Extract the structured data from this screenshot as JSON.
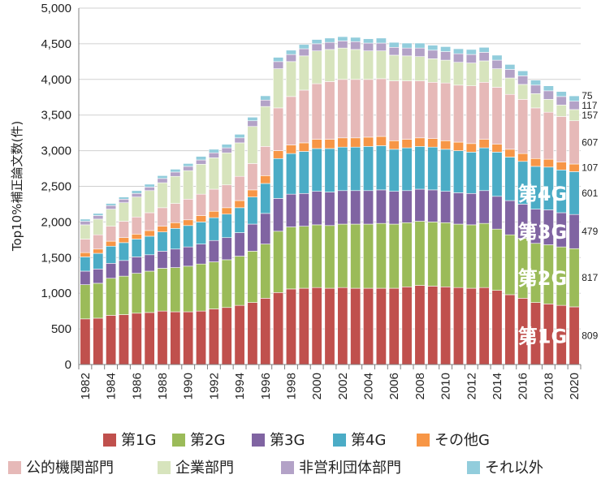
{
  "chart_data": {
    "type": "bar",
    "stacked": true,
    "ylabel": "Top10%補正論文数(件)",
    "ylim": [
      0,
      5000
    ],
    "yticks": [
      0,
      500,
      1000,
      1500,
      2000,
      2500,
      3000,
      3500,
      4000,
      4500,
      5000
    ],
    "ytick_labels": [
      "0",
      "500",
      "1,000",
      "1,500",
      "2,000",
      "2,500",
      "3,000",
      "3,500",
      "4,000",
      "4,500",
      "5,000"
    ],
    "grid": true,
    "legend_position": "bottom",
    "categories": [
      "1982",
      "1983",
      "1984",
      "1985",
      "1986",
      "1987",
      "1988",
      "1989",
      "1990",
      "1991",
      "1992",
      "1993",
      "1994",
      "1995",
      "1996",
      "1997",
      "1998",
      "1999",
      "2000",
      "2001",
      "2002",
      "2003",
      "2004",
      "2005",
      "2006",
      "2007",
      "2008",
      "2009",
      "2010",
      "2011",
      "2012",
      "2013",
      "2014",
      "2015",
      "2016",
      "2017",
      "2018",
      "2019",
      "2020"
    ],
    "x_tick_labels": [
      "1982",
      "",
      "1984",
      "",
      "1986",
      "",
      "1988",
      "",
      "1990",
      "",
      "1992",
      "",
      "1994",
      "",
      "1996",
      "",
      "1998",
      "",
      "2000",
      "",
      "2002",
      "",
      "2004",
      "",
      "2006",
      "",
      "2008",
      "",
      "2010",
      "",
      "2012",
      "",
      "2014",
      "",
      "2016",
      "",
      "2018",
      "",
      "2020"
    ],
    "series": [
      {
        "name": "第1G",
        "color": "#c0504d",
        "values": [
          640,
          650,
          690,
          700,
          720,
          730,
          750,
          740,
          740,
          750,
          780,
          800,
          830,
          870,
          930,
          1010,
          1060,
          1070,
          1080,
          1070,
          1080,
          1070,
          1070,
          1070,
          1070,
          1090,
          1110,
          1100,
          1090,
          1080,
          1070,
          1080,
          1040,
          980,
          930,
          870,
          850,
          830,
          809
        ]
      },
      {
        "name": "第2G",
        "color": "#9bbb59",
        "values": [
          480,
          490,
          520,
          540,
          560,
          580,
          600,
          620,
          640,
          660,
          660,
          670,
          690,
          720,
          760,
          860,
          870,
          870,
          880,
          880,
          890,
          900,
          900,
          910,
          900,
          900,
          900,
          900,
          900,
          890,
          890,
          900,
          860,
          840,
          840,
          830,
          830,
          820,
          817
        ]
      },
      {
        "name": "第3G",
        "color": "#8064a2",
        "values": [
          190,
          200,
          210,
          220,
          230,
          230,
          240,
          260,
          270,
          280,
          300,
          310,
          330,
          380,
          430,
          460,
          460,
          460,
          470,
          470,
          470,
          470,
          470,
          470,
          460,
          450,
          450,
          450,
          440,
          440,
          440,
          460,
          460,
          480,
          480,
          480,
          490,
          480,
          479
        ]
      },
      {
        "name": "第4G",
        "color": "#4bacc6",
        "values": [
          200,
          220,
          240,
          250,
          250,
          260,
          270,
          290,
          300,
          310,
          320,
          330,
          350,
          380,
          420,
          560,
          570,
          590,
          600,
          610,
          610,
          610,
          620,
          620,
          590,
          600,
          600,
          600,
          590,
          590,
          580,
          600,
          620,
          610,
          600,
          600,
          600,
          600,
          601
        ]
      },
      {
        "name": "その他G",
        "color": "#f79646",
        "values": [
          60,
          60,
          70,
          70,
          70,
          80,
          80,
          80,
          80,
          90,
          90,
          90,
          100,
          100,
          110,
          110,
          120,
          120,
          130,
          130,
          130,
          130,
          130,
          130,
          120,
          120,
          120,
          120,
          120,
          120,
          120,
          120,
          110,
          110,
          110,
          110,
          110,
          110,
          107
        ]
      },
      {
        "name": "公的機関部門",
        "color": "#e6b9b8",
        "values": [
          190,
          200,
          210,
          230,
          240,
          250,
          260,
          270,
          290,
          300,
          310,
          320,
          340,
          370,
          410,
          600,
          680,
          740,
          780,
          810,
          820,
          820,
          810,
          810,
          840,
          820,
          800,
          790,
          810,
          800,
          810,
          800,
          800,
          770,
          760,
          710,
          660,
          640,
          607
        ]
      },
      {
        "name": "企業部門",
        "color": "#d7e4bd",
        "values": [
          200,
          220,
          240,
          260,
          280,
          310,
          350,
          380,
          400,
          420,
          440,
          450,
          470,
          520,
          560,
          550,
          490,
          480,
          460,
          450,
          440,
          420,
          400,
          390,
          360,
          350,
          340,
          330,
          320,
          320,
          320,
          300,
          260,
          230,
          210,
          200,
          180,
          160,
          157
        ]
      },
      {
        "name": "非営利団体部門",
        "color": "#b3a2c7",
        "values": [
          50,
          50,
          50,
          50,
          50,
          50,
          60,
          60,
          60,
          60,
          70,
          70,
          70,
          80,
          90,
          100,
          100,
          100,
          100,
          100,
          100,
          110,
          110,
          110,
          110,
          110,
          120,
          120,
          120,
          120,
          120,
          120,
          120,
          120,
          120,
          120,
          120,
          120,
          117
        ]
      },
      {
        "name": "それ以外",
        "color": "#92cddc",
        "values": [
          30,
          30,
          30,
          30,
          40,
          40,
          40,
          40,
          40,
          50,
          50,
          50,
          50,
          50,
          60,
          60,
          60,
          60,
          60,
          60,
          60,
          60,
          60,
          70,
          70,
          70,
          70,
          70,
          70,
          70,
          70,
          70,
          70,
          70,
          70,
          70,
          70,
          70,
          75
        ]
      }
    ],
    "segment_labels": [
      "第1G",
      "第2G",
      "第3G",
      "第4G"
    ],
    "value_labels_2020": [
      "809",
      "817",
      "479",
      "601",
      "107",
      "607",
      "157",
      "117",
      "75"
    ]
  }
}
